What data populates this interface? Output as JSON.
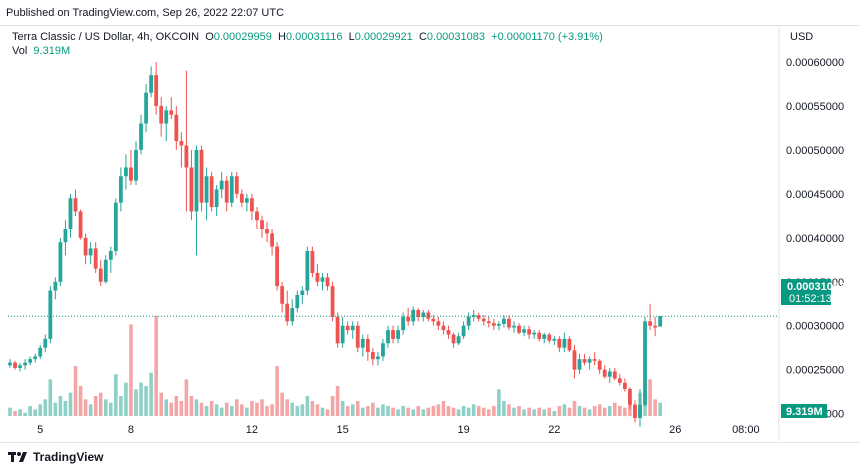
{
  "header": {
    "published": "Published on TradingView.com, Sep 26, 2022 22:07 UTC"
  },
  "legend": {
    "symbol": "Terra Classic / US Dollar, 4h, OKCOIN",
    "o_label": "O",
    "o_value": "0.00029959",
    "h_label": "H",
    "h_value": "0.00031116",
    "l_label": "L",
    "l_value": "0.00029921",
    "c_label": "C",
    "c_value": "0.00031083",
    "change": "+0.00001170 (+3.91%)",
    "vol_label": "Vol",
    "vol_value": "9.319M"
  },
  "price_axis": {
    "currency": "USD",
    "last_price": "0.00031083",
    "countdown": "01:52:13",
    "volume_tag": "9.319M"
  },
  "footer": {
    "brand": "TradingView"
  },
  "colors": {
    "up": "#26a69a",
    "down": "#ef5350",
    "up_vol": "#8fd0c6",
    "down_vol": "#f4a6a6",
    "axis_tag": "#089981"
  },
  "chart_data": {
    "type": "candlestick",
    "timeframe": "4h",
    "ylim": [
      0.00017,
      0.000625
    ],
    "y_ticks": [
      "0.00060000",
      "0.00055000",
      "0.00050000",
      "0.00045000",
      "0.00040000",
      "0.00035000",
      "0.00030000",
      "0.00025000",
      "0.00020000"
    ],
    "y_tick_values": [
      0.0006,
      0.00055,
      0.0005,
      0.00045,
      0.0004,
      0.00035,
      0.0003,
      0.00025,
      0.0002
    ],
    "x_ticks": [
      "5",
      "8",
      "12",
      "15",
      "19",
      "22",
      "26",
      "08:00"
    ],
    "x_tick_index": [
      6,
      24,
      48,
      66,
      90,
      108,
      132,
      146
    ],
    "last_close": 0.00031083,
    "candles": [
      [
        0.000255,
        0.000262,
        0.000252,
        0.000258,
        5
      ],
      [
        0.000258,
        0.00026,
        0.00025,
        0.000252,
        3
      ],
      [
        0.000252,
        0.000258,
        0.000248,
        0.000255,
        4
      ],
      [
        0.000255,
        0.000262,
        0.00025,
        0.000258,
        2
      ],
      [
        0.000258,
        0.000265,
        0.000255,
        0.000262,
        6
      ],
      [
        0.000262,
        0.000268,
        0.000258,
        0.000265,
        4
      ],
      [
        0.000265,
        0.000278,
        0.000262,
        0.000275,
        7
      ],
      [
        0.000275,
        0.00029,
        0.00027,
        0.000285,
        10
      ],
      [
        0.000285,
        0.000345,
        0.00028,
        0.00034,
        22
      ],
      [
        0.00034,
        0.000355,
        0.00033,
        0.00035,
        8
      ],
      [
        0.00035,
        0.0004,
        0.000345,
        0.000395,
        12
      ],
      [
        0.000395,
        0.00042,
        0.00038,
        0.00041,
        9
      ],
      [
        0.00041,
        0.00045,
        0.0004,
        0.000445,
        14
      ],
      [
        0.000445,
        0.000455,
        0.000425,
        0.00043,
        30
      ],
      [
        0.00043,
        0.000432,
        0.000398,
        0.0004,
        18
      ],
      [
        0.0004,
        0.000405,
        0.00037,
        0.00038,
        10
      ],
      [
        0.00038,
        0.000395,
        0.00037,
        0.000388,
        7
      ],
      [
        0.000388,
        0.000395,
        0.00036,
        0.000365,
        12
      ],
      [
        0.000365,
        0.000375,
        0.000345,
        0.00035,
        14
      ],
      [
        0.00035,
        0.00038,
        0.000348,
        0.000375,
        10
      ],
      [
        0.000375,
        0.00039,
        0.00036,
        0.000385,
        8
      ],
      [
        0.000385,
        0.000445,
        0.00038,
        0.00044,
        25
      ],
      [
        0.00044,
        0.00048,
        0.00043,
        0.00047,
        12
      ],
      [
        0.00047,
        0.000495,
        0.000455,
        0.00048,
        20
      ],
      [
        0.00048,
        0.0005,
        0.00046,
        0.000465,
        55
      ],
      [
        0.000465,
        0.00051,
        0.00046,
        0.0005,
        16
      ],
      [
        0.0005,
        0.00054,
        0.000495,
        0.00053,
        20
      ],
      [
        0.00053,
        0.000575,
        0.00052,
        0.000565,
        18
      ],
      [
        0.000565,
        0.000595,
        0.00056,
        0.000585,
        26
      ],
      [
        0.000585,
        0.0006,
        0.00054,
        0.00055,
        60
      ],
      [
        0.00055,
        0.00056,
        0.000515,
        0.00053,
        14
      ],
      [
        0.00053,
        0.00055,
        0.00051,
        0.000545,
        10
      ],
      [
        0.000545,
        0.00056,
        0.000535,
        0.00054,
        8
      ],
      [
        0.00054,
        0.00055,
        0.0005,
        0.00051,
        12
      ],
      [
        0.00051,
        0.00052,
        0.00048,
        0.000505,
        9
      ],
      [
        0.000505,
        0.00059,
        0.00043,
        0.00048,
        22
      ],
      [
        0.00048,
        0.0005,
        0.00042,
        0.00043,
        12
      ],
      [
        0.00043,
        0.000505,
        0.00038,
        0.0005,
        10
      ],
      [
        0.0005,
        0.000505,
        0.00043,
        0.00044,
        8
      ],
      [
        0.00044,
        0.00048,
        0.00042,
        0.00047,
        6
      ],
      [
        0.00047,
        0.000475,
        0.00043,
        0.000435,
        9
      ],
      [
        0.000435,
        0.00046,
        0.000425,
        0.000455,
        7
      ],
      [
        0.000455,
        0.000475,
        0.000445,
        0.000465,
        5
      ],
      [
        0.000465,
        0.00047,
        0.00043,
        0.00044,
        8
      ],
      [
        0.00044,
        0.000475,
        0.000435,
        0.00047,
        6
      ],
      [
        0.00047,
        0.000475,
        0.000445,
        0.00045,
        10
      ],
      [
        0.00045,
        0.000455,
        0.000435,
        0.00044,
        7
      ],
      [
        0.00044,
        0.00045,
        0.00043,
        0.000445,
        5
      ],
      [
        0.000445,
        0.00045,
        0.00042,
        0.00043,
        9
      ],
      [
        0.00043,
        0.000435,
        0.00041,
        0.00042,
        8
      ],
      [
        0.00042,
        0.000425,
        0.0004,
        0.00041,
        10
      ],
      [
        0.00041,
        0.000418,
        0.000395,
        0.000405,
        6
      ],
      [
        0.000405,
        0.00041,
        0.00038,
        0.00039,
        7
      ],
      [
        0.00039,
        0.000395,
        0.00034,
        0.000345,
        30
      ],
      [
        0.000345,
        0.00035,
        0.000315,
        0.000325,
        14
      ],
      [
        0.000325,
        0.00034,
        0.0003,
        0.000305,
        10
      ],
      [
        0.000305,
        0.00033,
        0.0003,
        0.00032,
        8
      ],
      [
        0.00032,
        0.00034,
        0.000315,
        0.000335,
        6
      ],
      [
        0.000335,
        0.000345,
        0.000325,
        0.00034,
        7
      ],
      [
        0.00034,
        0.00039,
        0.000335,
        0.000385,
        12
      ],
      [
        0.000385,
        0.00039,
        0.000355,
        0.00036,
        9
      ],
      [
        0.00036,
        0.00037,
        0.000345,
        0.00035,
        7
      ],
      [
        0.00035,
        0.00036,
        0.00034,
        0.000355,
        5
      ],
      [
        0.000355,
        0.00036,
        0.00034,
        0.000345,
        4
      ],
      [
        0.000345,
        0.00035,
        0.000305,
        0.00031,
        12
      ],
      [
        0.00031,
        0.000315,
        0.000275,
        0.00028,
        18
      ],
      [
        0.00028,
        0.00031,
        0.000275,
        0.0003,
        9
      ],
      [
        0.0003,
        0.000305,
        0.00029,
        0.000295,
        6
      ],
      [
        0.000295,
        0.000305,
        0.000285,
        0.0003,
        7
      ],
      [
        0.0003,
        0.000305,
        0.00027,
        0.000275,
        9
      ],
      [
        0.000275,
        0.00029,
        0.000265,
        0.000285,
        5
      ],
      [
        0.000285,
        0.00029,
        0.00026,
        0.00027,
        6
      ],
      [
        0.00027,
        0.000275,
        0.000255,
        0.000262,
        8
      ],
      [
        0.000262,
        0.00027,
        0.000255,
        0.000265,
        5
      ],
      [
        0.000265,
        0.000285,
        0.00026,
        0.00028,
        7
      ],
      [
        0.00028,
        0.0003,
        0.000275,
        0.000295,
        6
      ],
      [
        0.000295,
        0.0003,
        0.00028,
        0.000285,
        5
      ],
      [
        0.000285,
        0.0003,
        0.00028,
        0.000295,
        4
      ],
      [
        0.000295,
        0.000315,
        0.00029,
        0.00031,
        6
      ],
      [
        0.00031,
        0.00032,
        0.0003,
        0.000305,
        5
      ],
      [
        0.000305,
        0.000322,
        0.0003,
        0.000318,
        4
      ],
      [
        0.000318,
        0.00032,
        0.000305,
        0.00031,
        6
      ],
      [
        0.00031,
        0.000318,
        0.000305,
        0.000315,
        4
      ],
      [
        0.000315,
        0.000318,
        0.000305,
        0.000308,
        5
      ],
      [
        0.000308,
        0.000312,
        0.0003,
        0.000305,
        6
      ],
      [
        0.000305,
        0.00031,
        0.000295,
        0.0003,
        7
      ],
      [
        0.0003,
        0.000305,
        0.00029,
        0.000295,
        9
      ],
      [
        0.000295,
        0.0003,
        0.000285,
        0.00029,
        6
      ],
      [
        0.00029,
        0.000292,
        0.000275,
        0.00028,
        5
      ],
      [
        0.00028,
        0.000292,
        0.000278,
        0.000288,
        4
      ],
      [
        0.000288,
        0.000305,
        0.000285,
        0.0003,
        6
      ],
      [
        0.0003,
        0.000315,
        0.000295,
        0.00031,
        5
      ],
      [
        0.00031,
        0.000318,
        0.000305,
        0.000312,
        7
      ],
      [
        0.000312,
        0.000315,
        0.000305,
        0.000308,
        6
      ],
      [
        0.000308,
        0.000312,
        0.0003,
        0.000305,
        5
      ],
      [
        0.000305,
        0.00031,
        0.000298,
        0.000303,
        4
      ],
      [
        0.000303,
        0.000308,
        0.000295,
        0.0003,
        6
      ],
      [
        0.0003,
        0.000305,
        0.000295,
        0.000302,
        16
      ],
      [
        0.000302,
        0.000312,
        0.000298,
        0.000308,
        9
      ],
      [
        0.000308,
        0.000312,
        0.000295,
        0.000298,
        7
      ],
      [
        0.000298,
        0.000305,
        0.000292,
        0.0003,
        5
      ],
      [
        0.0003,
        0.000303,
        0.00029,
        0.000292,
        6
      ],
      [
        0.000292,
        0.0003,
        0.000288,
        0.000296,
        4
      ],
      [
        0.000296,
        0.0003,
        0.000285,
        0.00029,
        5
      ],
      [
        0.00029,
        0.000295,
        0.000285,
        0.000292,
        4
      ],
      [
        0.000292,
        0.000295,
        0.000282,
        0.000285,
        5
      ],
      [
        0.000285,
        0.000292,
        0.00028,
        0.00029,
        4
      ],
      [
        0.00029,
        0.000292,
        0.00028,
        0.000283,
        5
      ],
      [
        0.000283,
        0.000288,
        0.000278,
        0.000285,
        3
      ],
      [
        0.000285,
        0.000288,
        0.00027,
        0.000275,
        6
      ],
      [
        0.000275,
        0.000292,
        0.00027,
        0.000285,
        7
      ],
      [
        0.000285,
        0.000288,
        0.00027,
        0.000272,
        5
      ],
      [
        0.000272,
        0.000278,
        0.00024,
        0.00025,
        9
      ],
      [
        0.00025,
        0.000268,
        0.000245,
        0.000262,
        6
      ],
      [
        0.000262,
        0.000268,
        0.000255,
        0.000258,
        5
      ],
      [
        0.000258,
        0.000265,
        0.00025,
        0.000262,
        4
      ],
      [
        0.000262,
        0.00027,
        0.000255,
        0.00026,
        6
      ],
      [
        0.00026,
        0.000262,
        0.000245,
        0.00025,
        7
      ],
      [
        0.00025,
        0.000255,
        0.00024,
        0.000242,
        5
      ],
      [
        0.000242,
        0.000252,
        0.000235,
        0.000248,
        6
      ],
      [
        0.000248,
        0.000252,
        0.000238,
        0.00024,
        8
      ],
      [
        0.00024,
        0.000245,
        0.000232,
        0.000235,
        6
      ],
      [
        0.000235,
        0.00024,
        0.000225,
        0.000228,
        5
      ],
      [
        0.000228,
        0.00023,
        0.000205,
        0.00021,
        9
      ],
      [
        0.00021,
        0.000215,
        0.00019,
        0.000195,
        7
      ],
      [
        0.000195,
        0.000228,
        0.000185,
        0.00021,
        14
      ],
      [
        0.00021,
        0.00031,
        0.000208,
        0.000305,
        20
      ],
      [
        0.000305,
        0.000325,
        0.000295,
        0.0003,
        22
      ],
      [
        0.0003,
        0.00031,
        0.000288,
        0.000298,
        10
      ],
      [
        0.000299,
        0.000311,
        0.000299,
        0.000311,
        8
      ]
    ]
  }
}
